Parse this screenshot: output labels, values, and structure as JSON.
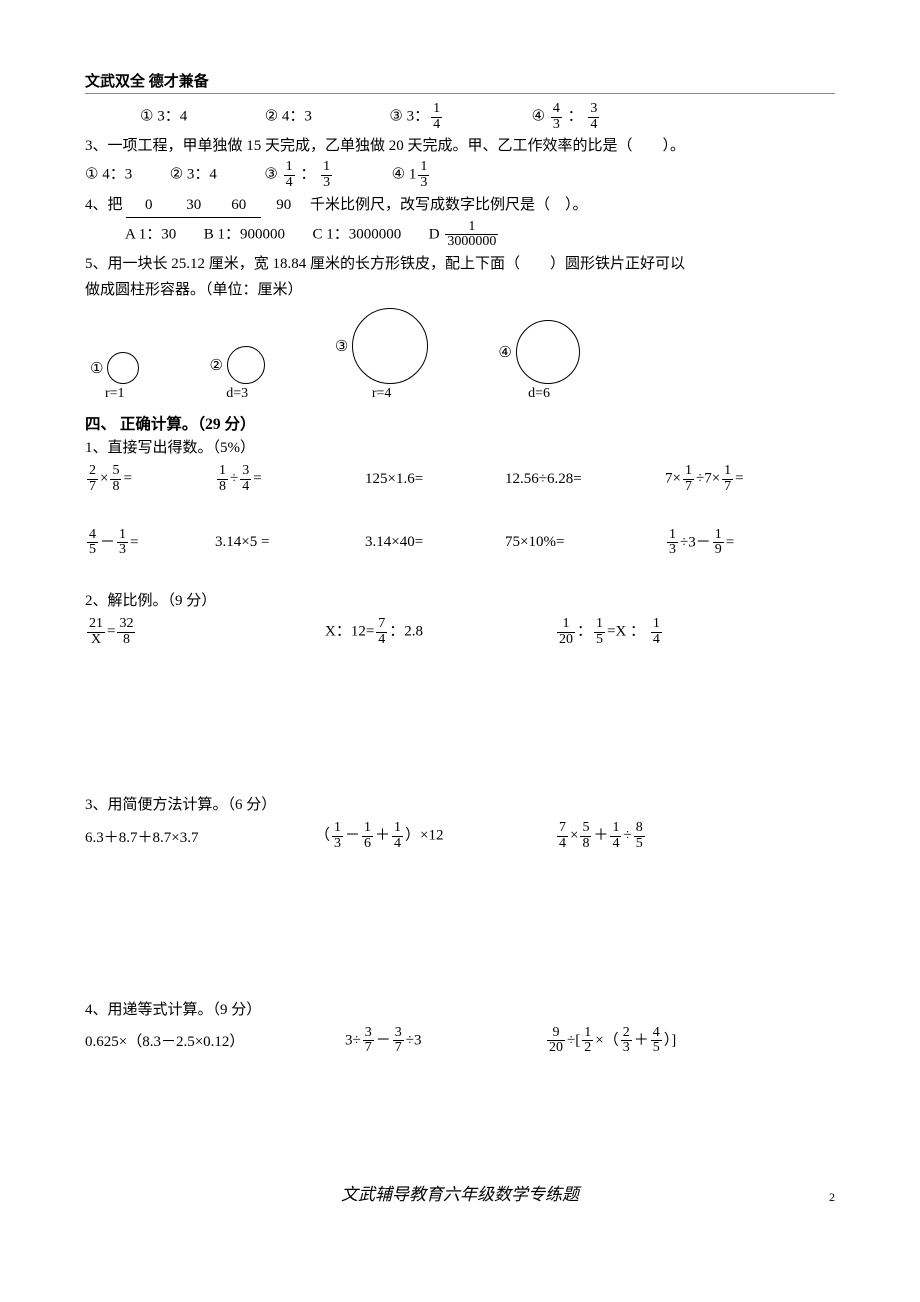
{
  "header": "文武双全  德才兼备",
  "q2_options": {
    "o1": "① 3：4",
    "o2": "② 4：3",
    "o3_pre": "③ 3：",
    "o3_num": "1",
    "o3_den": "4",
    "o4_pre": "④ ",
    "o4_n1": "4",
    "o4_d1": "3",
    "o4_mid": " ： ",
    "o4_n2": "3",
    "o4_d2": "4"
  },
  "q3": {
    "text": "3、一项工程，甲单独做 15 天完成，乙单独做 20 天完成。甲、乙工作效率的比是（　　）。",
    "o1": "① 4：3",
    "o2": "② 3：4",
    "o3_pre": "③  ",
    "o3_n1": "1",
    "o3_d1": "4",
    "o3_mid": " ： ",
    "o3_n2": "1",
    "o3_d2": "3",
    "o4_pre": "④   1",
    "o4_n": "1",
    "o4_d": "3"
  },
  "q4": {
    "pre": "4、把 ",
    "r0": "0",
    "r1": "30",
    "r2": "60",
    "r3": "90",
    "post": " 千米比例尺，改写成数字比例尺是（　）。",
    "a": "A 1：30",
    "b": "B  1：900000",
    "c": "C   1：3000000",
    "d_pre": "D  ",
    "d_num": "1",
    "d_den": "3000000"
  },
  "q5": {
    "l1": "5、用一块长 25.12 厘米，宽 18.84 厘米的长方形铁皮，配上下面（　　）圆形铁片正好可以",
    "l2": "做成圆柱形容器。（单位：厘米）",
    "c1": "①",
    "c2": "②",
    "c3": "③",
    "c4": "④",
    "lb1": "r=1",
    "lb2": "d=3",
    "lb3": "r=4",
    "lb4": "d=6"
  },
  "circles": {
    "sizes": [
      30,
      36,
      74,
      62
    ]
  },
  "sec4": {
    "title": "四、 正确计算。（29 分）",
    "p1": "1、直接写出得数。（5%）",
    "r1": {
      "a_n1": "2",
      "a_d1": "7",
      "a_n2": "5",
      "a_d2": "8",
      "b_n1": "1",
      "b_d1": "8",
      "b_n2": "3",
      "b_d2": "4",
      "c": "125×1.6=",
      "d": "12.56÷6.28=",
      "e_pre": "7×",
      "e_n1": "1",
      "e_d1": "7",
      "e_mid": "÷7×",
      "e_n2": "1",
      "e_d2": "7",
      "e_post": "="
    },
    "r2": {
      "a_n1": "4",
      "a_d1": "5",
      "a_n2": "1",
      "a_d2": "3",
      "b": "3.14×5  =",
      "c": "3.14×40=",
      "d": "75×10%=",
      "e_n1": "1",
      "e_d1": "3",
      "e_mid": "÷3－",
      "e_n2": "1",
      "e_d2": "9",
      "e_post": "="
    },
    "p2": "2、解比例。（9 分）",
    "r3": {
      "a_n1": "21",
      "a_d1": "X",
      "a_n2": "32",
      "a_d2": "8",
      "b_pre": "X：12=",
      "b_n": "7",
      "b_d": "4",
      "b_post": "：2.8",
      "c_n1": "1",
      "c_d1": "20",
      "c_m1": "：",
      "c_n2": "1",
      "c_d2": "5",
      "c_m2": "=X ： ",
      "c_n3": "1",
      "c_d3": "4"
    },
    "p3": "3、用简便方法计算。（6 分）",
    "r4": {
      "a": "6.3＋8.7＋8.7×3.7",
      "b_pre": "（",
      "b_n1": "1",
      "b_d1": "3",
      "b_m1": "－",
      "b_n2": "1",
      "b_d2": "6",
      "b_m2": "＋",
      "b_n3": "1",
      "b_d3": "4",
      "b_post": "）×12",
      "c_n1": "7",
      "c_d1": "4",
      "c_m1": "×",
      "c_n2": "5",
      "c_d2": "8",
      "c_m2": "＋",
      "c_n3": "1",
      "c_d3": "4",
      "c_m3": "÷",
      "c_n4": "8",
      "c_d4": "5"
    },
    "p4": "4、用递等式计算。（9 分）",
    "r5": {
      "a": "0.625×（8.3－2.5×0.12）",
      "b_pre": "3÷",
      "b_n1": "3",
      "b_d1": "7",
      "b_m": "－",
      "b_n2": "3",
      "b_d2": "7",
      "b_post": "÷3",
      "c_n1": "9",
      "c_d1": "20",
      "c_m1": "÷[",
      "c_n2": "1",
      "c_d2": "2",
      "c_m2": "×（",
      "c_n3": "2",
      "c_d3": "3",
      "c_m3": "＋",
      "c_n4": "4",
      "c_d4": "5",
      "c_post": "）]"
    }
  },
  "footer": "文武辅导教育六年级数学专练题",
  "pagenum": "2"
}
